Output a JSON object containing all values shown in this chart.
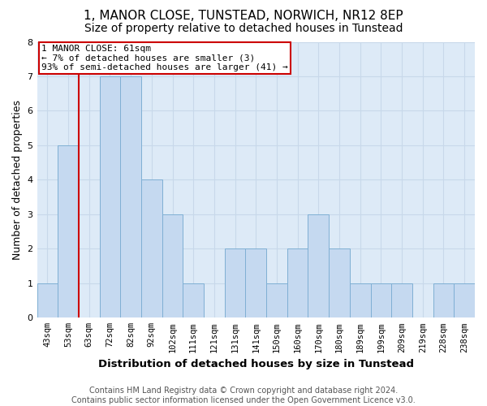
{
  "title": "1, MANOR CLOSE, TUNSTEAD, NORWICH, NR12 8EP",
  "subtitle": "Size of property relative to detached houses in Tunstead",
  "xlabel": "Distribution of detached houses by size in Tunstead",
  "ylabel": "Number of detached properties",
  "categories": [
    "43sqm",
    "53sqm",
    "63sqm",
    "72sqm",
    "82sqm",
    "92sqm",
    "102sqm",
    "111sqm",
    "121sqm",
    "131sqm",
    "141sqm",
    "150sqm",
    "160sqm",
    "170sqm",
    "180sqm",
    "189sqm",
    "199sqm",
    "209sqm",
    "219sqm",
    "228sqm",
    "238sqm"
  ],
  "values": [
    1,
    5,
    0,
    7,
    7,
    4,
    3,
    1,
    0,
    2,
    2,
    1,
    2,
    3,
    2,
    1,
    1,
    1,
    0,
    1,
    1
  ],
  "bar_color": "#c5d9f0",
  "bar_edge_color": "#7fafd4",
  "subject_line_index": 2,
  "subject_line_color": "#cc0000",
  "annotation_box_text": "1 MANOR CLOSE: 61sqm\n← 7% of detached houses are smaller (3)\n93% of semi-detached houses are larger (41) →",
  "annotation_box_color": "#cc0000",
  "annotation_box_fill": "#ffffff",
  "ylim": [
    0,
    8
  ],
  "yticks": [
    0,
    1,
    2,
    3,
    4,
    5,
    6,
    7,
    8
  ],
  "footer_text": "Contains HM Land Registry data © Crown copyright and database right 2024.\nContains public sector information licensed under the Open Government Licence v3.0.",
  "grid_color": "#c8d8ea",
  "background_color": "#ddeaf7",
  "title_fontsize": 11,
  "subtitle_fontsize": 10,
  "axis_label_fontsize": 9,
  "tick_fontsize": 7.5,
  "footer_fontsize": 7
}
